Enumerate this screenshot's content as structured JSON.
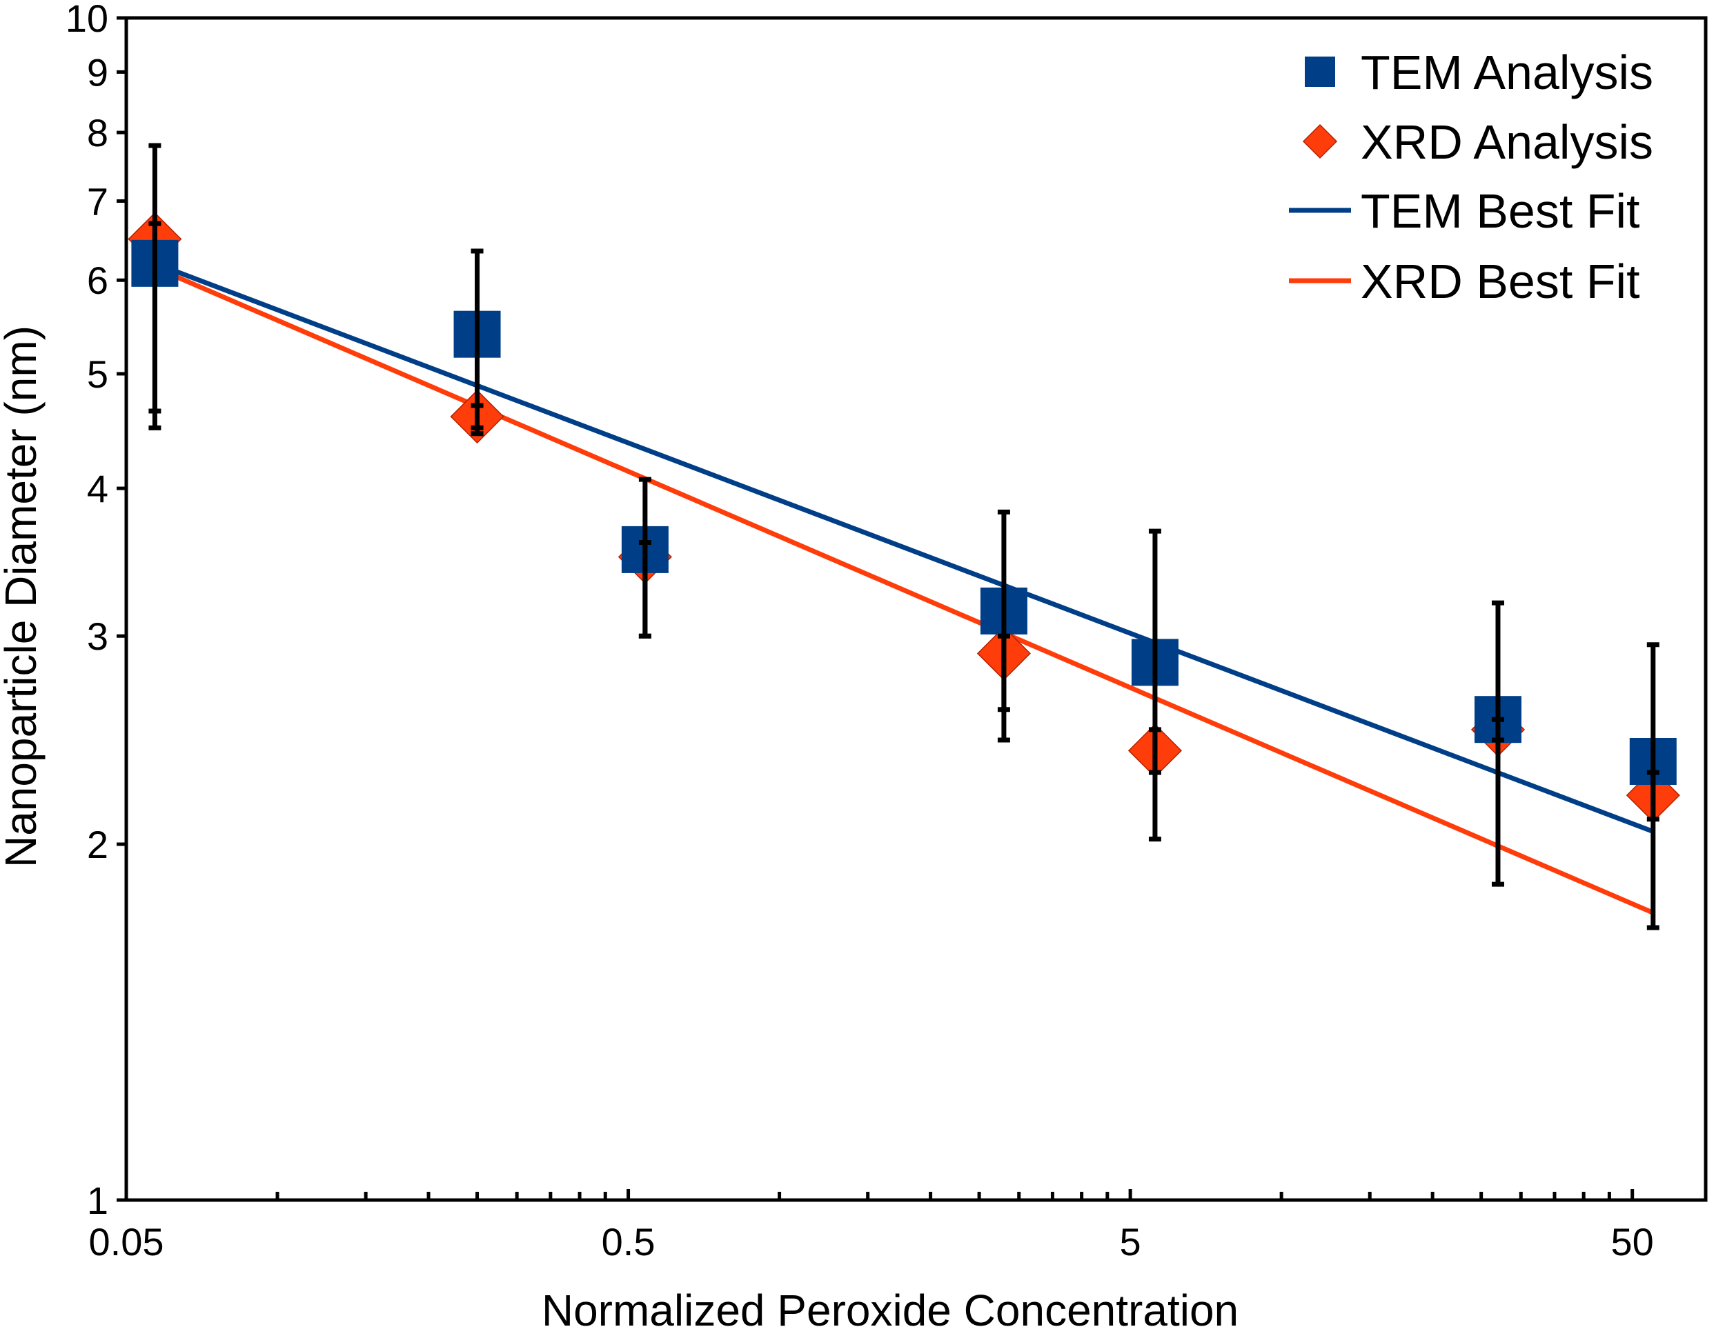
{
  "chart_data": {
    "type": "scatter",
    "xlabel": "Normalized Peroxide Concentration",
    "ylabel": "Nanoparticle Diameter (nm)",
    "x_scale": "log",
    "y_scale": "log",
    "xlim": [
      0.05,
      70
    ],
    "ylim": [
      1,
      10
    ],
    "x_tick_labels": [
      "0.05",
      "0.5",
      "5",
      "50"
    ],
    "x_tick_values": [
      0.05,
      0.5,
      5,
      50
    ],
    "y_tick_labels": [
      "1",
      "2",
      "3",
      "4",
      "5",
      "6",
      "7",
      "8",
      "9",
      "10"
    ],
    "y_tick_values": [
      1,
      2,
      3,
      4,
      5,
      6,
      7,
      8,
      9,
      10
    ],
    "grid": false,
    "legend_position": "top-right",
    "colors": {
      "tem": "#003f87",
      "xrd": "#ff3d0a",
      "error_bar": "#000000"
    },
    "series": [
      {
        "name": "TEM Analysis",
        "marker": "square",
        "x": [
          0.057,
          0.25,
          0.54,
          2.8,
          5.6,
          27,
          55
        ],
        "y": [
          6.2,
          5.4,
          3.55,
          3.15,
          2.85,
          2.55,
          2.35
        ],
        "err_low": [
          4.65,
          4.45,
          3.0,
          2.45,
          2.02,
          1.85,
          1.7
        ],
        "err_high": [
          7.8,
          6.35,
          4.07,
          3.82,
          3.68,
          3.2,
          2.95
        ]
      },
      {
        "name": "XRD Analysis",
        "marker": "diamond",
        "x": [
          0.057,
          0.25,
          0.54,
          2.8,
          5.6,
          27,
          55
        ],
        "y": [
          6.5,
          4.6,
          3.5,
          2.9,
          2.4,
          2.5,
          2.2
        ],
        "err_low": [
          4.5,
          4.5,
          3.0,
          2.6,
          2.3,
          2.45,
          2.1
        ],
        "err_high": [
          6.7,
          4.7,
          3.6,
          3.0,
          2.5,
          2.55,
          2.3
        ]
      },
      {
        "name": "TEM Best Fit",
        "type": "line",
        "x": [
          0.057,
          55
        ],
        "y": [
          6.2,
          2.05
        ]
      },
      {
        "name": "XRD Best Fit",
        "type": "line",
        "x": [
          0.057,
          55
        ],
        "y": [
          6.15,
          1.75
        ]
      }
    ]
  }
}
